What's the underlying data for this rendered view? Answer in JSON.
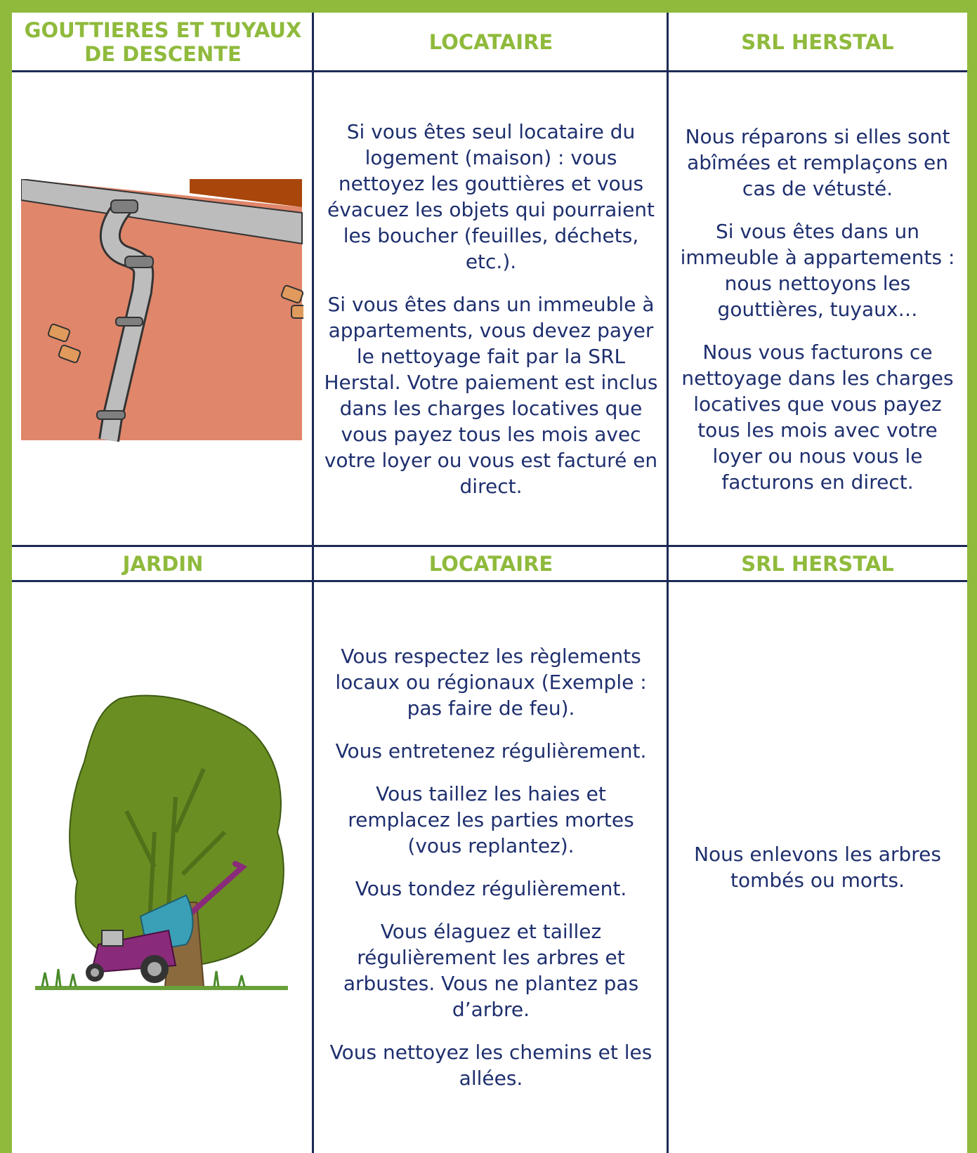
{
  "sections": [
    {
      "header": [
        "GOUTTIERES ET TUYAUX DE DESCENTE",
        "LOCATAIRE",
        "SRL HERSTAL"
      ],
      "locataire": [
        "Si vous êtes seul locataire du logement (maison) : vous nettoyez les gouttières et vous évacuez les objets qui pourraient les boucher (feuilles, déchets, etc.).",
        "Si vous êtes dans un immeuble à appartements, vous devez payer le nettoyage fait par la SRL Herstal. Votre paiement est inclus dans les charges locatives que vous payez tous les mois avec votre loyer ou vous est facturé en direct."
      ],
      "herstal": [
        "Nous réparons si elles sont abîmées et remplaçons en cas de vétusté.",
        "Si vous êtes dans un immeuble à appartements : nous nettoyons les gouttières, tuyaux…",
        "Nous vous facturons ce nettoyage dans les charges locatives que vous payez tous les mois avec votre loyer ou nous vous le facturons en direct."
      ]
    },
    {
      "header": [
        "JARDIN",
        "LOCATAIRE",
        "SRL HERSTAL"
      ],
      "locataire": [
        "Vous respectez les règlements locaux ou régionaux (Exemple : pas faire de feu).",
        "Vous entretenez régulièrement.",
        "Vous taillez les haies et remplacez les parties mortes (vous replantez).",
        "Vous tondez régulièrement.",
        "Vous élaguez et taillez régulièrement les arbres et arbustes. Vous ne plantez pas d’arbre.",
        "Vous nettoyez les chemins et les allées."
      ],
      "herstal": [
        "Nous enlevons les arbres tombés ou morts."
      ]
    }
  ]
}
